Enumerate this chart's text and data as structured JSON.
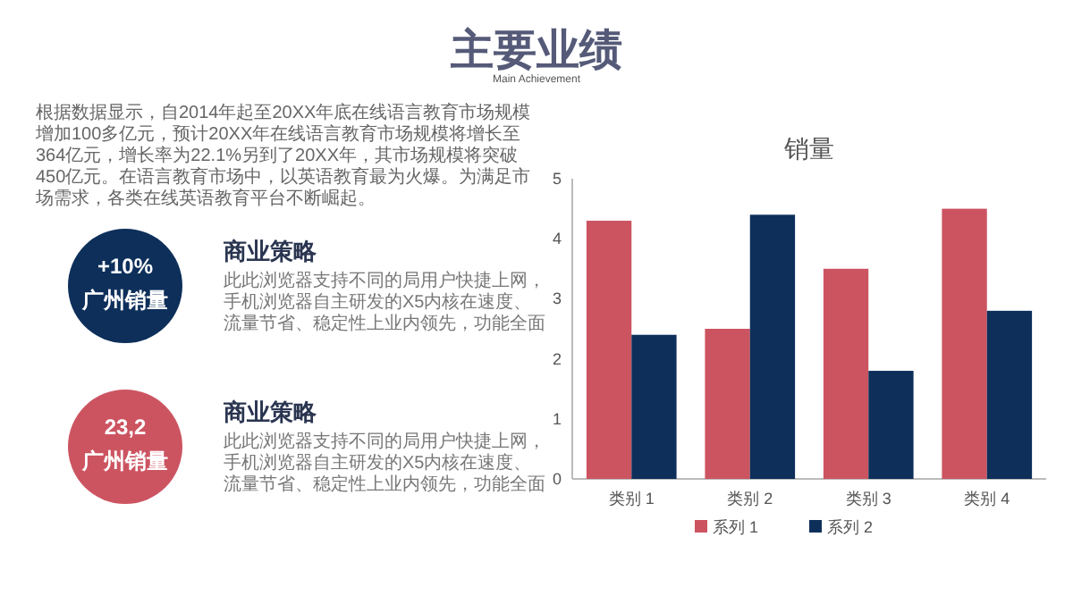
{
  "chart_data": [
    {
      "type": "other",
      "title": "主要业绩",
      "subtitle": "Main Achievement",
      "colors": [
        "#0d2f5a",
        "#cc5461"
      ],
      "annotations": [
        "根据数据显示，自2014年起至20XX年底在线语言教育市场规模增加100多亿元，预计20XX年在线语言教育市场规模将增长至364亿元，增长率为22.1%另到了20XX年，其市场规模将突破450亿元。在语言教育市场中，以英语教育最为火爆。为满足市场需求，各类在线英语教育平台不断崛起。",
        "+10%",
        "广州销量",
        "商业策略",
        "此此浏览器支持不同的局用户快捷上网，手机浏览器自主研发的X5内核在速度、流量节省、稳定性上业内领先，功能全面",
        "23,2",
        "广州销量",
        "商业策略",
        "此此浏览器支持不同的局用户快捷上网，手机浏览器自主研发的X5内核在速度、流量节省、稳定性上业内领先，功能全面"
      ]
    },
    {
      "type": "bar",
      "title": "销量",
      "categories": [
        "类别 1",
        "类别 2",
        "类别 3",
        "类别 4"
      ],
      "series": [
        {
          "name": "系列 1",
          "color": "#cc5461",
          "values": [
            4.3,
            2.5,
            3.5,
            4.5
          ]
        },
        {
          "name": "系列 2",
          "color": "#0d2f5a",
          "values": [
            2.4,
            4.4,
            1.8,
            2.8
          ]
        }
      ],
      "ylim": [
        0,
        5
      ],
      "yticks": [
        0,
        1,
        2,
        3,
        4,
        5
      ],
      "grid": false,
      "legend": "bottom"
    }
  ]
}
